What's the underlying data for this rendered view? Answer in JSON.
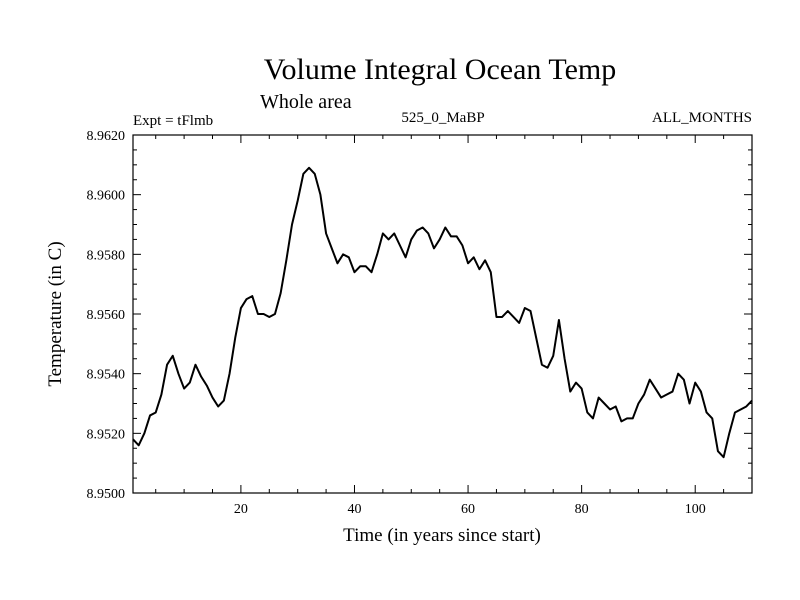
{
  "chart_data": {
    "type": "line",
    "title": "Volume Integral Ocean Temp",
    "subtitle": "Whole area",
    "left_label": "Expt = tFlmb",
    "center_label": "525_0_MaBP",
    "right_label": "ALL_MONTHS",
    "xlabel": "Time (in years since start)",
    "ylabel": "Temperature (in C)",
    "xlim": [
      1,
      110
    ],
    "ylim": [
      8.95,
      8.962
    ],
    "xticks": [
      20,
      40,
      60,
      80,
      100
    ],
    "xtick_labels": [
      "20",
      "40",
      "60",
      "80",
      "100"
    ],
    "yticks": [
      8.95,
      8.952,
      8.954,
      8.956,
      8.958,
      8.96,
      8.962
    ],
    "ytick_labels": [
      "8.9500",
      "8.9520",
      "8.9540",
      "8.9560",
      "8.9580",
      "8.9600",
      "8.9620"
    ],
    "grid": false,
    "series": [
      {
        "name": "Volume Integral Ocean Temp",
        "color": "#000000",
        "x": [
          1,
          2,
          3,
          4,
          5,
          6,
          7,
          8,
          9,
          10,
          11,
          12,
          13,
          14,
          15,
          16,
          17,
          18,
          19,
          20,
          21,
          22,
          23,
          24,
          25,
          26,
          27,
          28,
          29,
          30,
          31,
          32,
          33,
          34,
          35,
          36,
          37,
          38,
          39,
          40,
          41,
          42,
          43,
          44,
          45,
          46,
          47,
          48,
          49,
          50,
          51,
          52,
          53,
          54,
          55,
          56,
          57,
          58,
          59,
          60,
          61,
          62,
          63,
          64,
          65,
          66,
          67,
          68,
          69,
          70,
          71,
          72,
          73,
          74,
          75,
          76,
          77,
          78,
          79,
          80,
          81,
          82,
          83,
          84,
          85,
          86,
          87,
          88,
          89,
          90,
          91,
          92,
          93,
          94,
          95,
          96,
          97,
          98,
          99,
          100,
          101,
          102,
          103,
          104,
          105,
          106,
          107,
          108,
          109,
          110
        ],
        "values": [
          8.9518,
          8.9516,
          8.952,
          8.9526,
          8.9527,
          8.9533,
          8.9543,
          8.9546,
          8.954,
          8.9535,
          8.9537,
          8.9543,
          8.9539,
          8.9536,
          8.9532,
          8.9529,
          8.9531,
          8.954,
          8.9552,
          8.9562,
          8.9565,
          8.9566,
          8.956,
          8.956,
          8.9559,
          8.956,
          8.9567,
          8.9578,
          8.959,
          8.9598,
          8.9607,
          8.9609,
          8.9607,
          8.96,
          8.9587,
          8.9582,
          8.9577,
          8.958,
          8.9579,
          8.9574,
          8.9576,
          8.9576,
          8.9574,
          8.958,
          8.9587,
          8.9585,
          8.9587,
          8.9583,
          8.9579,
          8.9585,
          8.9588,
          8.9589,
          8.9587,
          8.9582,
          8.9585,
          8.9589,
          8.9586,
          8.9586,
          8.9583,
          8.9577,
          8.9579,
          8.9575,
          8.9578,
          8.9574,
          8.9559,
          8.9559,
          8.9561,
          8.9559,
          8.9557,
          8.9562,
          8.9561,
          8.9552,
          8.9543,
          8.9542,
          8.9546,
          8.9558,
          8.9545,
          8.9534,
          8.9537,
          8.9535,
          8.9527,
          8.9525,
          8.9532,
          8.953,
          8.9528,
          8.9529,
          8.9524,
          8.9525,
          8.9525,
          8.953,
          8.9533,
          8.9538,
          8.9535,
          8.9532,
          8.9533,
          8.9534,
          8.954,
          8.9538,
          8.953,
          8.9537,
          8.9534,
          8.9527,
          8.9525,
          8.9514,
          8.9512,
          8.952,
          8.9527,
          8.9528,
          8.9529,
          8.9531
        ]
      }
    ]
  }
}
